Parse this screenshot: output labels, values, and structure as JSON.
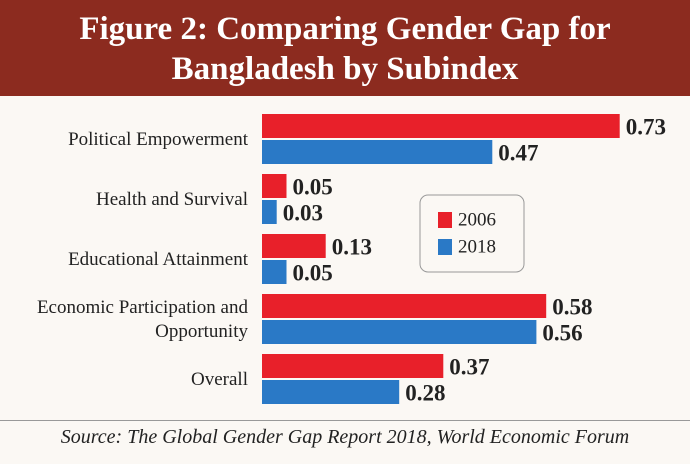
{
  "chart_data": {
    "type": "hbar",
    "title": "Figure 2: Comparing Gender Gap for Bangladesh by Subindex",
    "categories": [
      "Political Empowerment",
      "Health and Survival",
      "Educational Attainment",
      "Economic Participation and Opportunity",
      "Overall"
    ],
    "series": [
      {
        "name": "2006",
        "color": "#e8202a",
        "values": [
          0.73,
          0.05,
          0.13,
          0.58,
          0.37
        ]
      },
      {
        "name": "2018",
        "color": "#2a79c6",
        "values": [
          0.47,
          0.03,
          0.05,
          0.56,
          0.28
        ]
      }
    ],
    "xlim": [
      0,
      0.8
    ],
    "source": "Source: The Global Gender Gap Report 2018, World Economic Forum"
  }
}
